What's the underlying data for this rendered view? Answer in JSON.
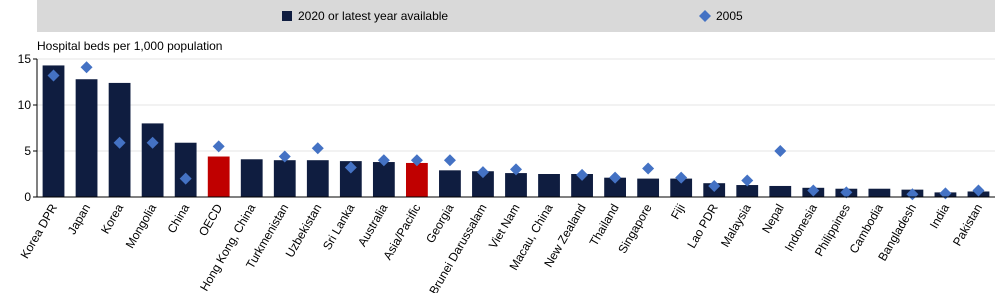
{
  "chart_data": {
    "type": "bar",
    "y_label": "Hospital beds per 1,000 population",
    "categories": [
      "Korea DPR",
      "Japan",
      "Korea",
      "Mongolia",
      "China",
      "OECD",
      "Hong Kong, China",
      "Turkmenistan",
      "Uzbekistan",
      "Sri Lanka",
      "Australia",
      "Asia/Pacific",
      "Georgia",
      "Brunei Darussalam",
      "Viet Nam",
      "Macau, China",
      "New Zealand",
      "Thailand",
      "Singapore",
      "Fiji",
      "Lao PDR",
      "Malaysia",
      "Nepal",
      "Indonesia",
      "Philippines",
      "Cambodia",
      "Bangladesh",
      "India",
      "Pakistan"
    ],
    "series": [
      {
        "name": "2020 or latest year available",
        "type": "bar",
        "color": "#0f1d40",
        "colors": [
          "#0f1d40",
          "#0f1d40",
          "#0f1d40",
          "#0f1d40",
          "#0f1d40",
          "#c00000",
          "#0f1d40",
          "#0f1d40",
          "#0f1d40",
          "#0f1d40",
          "#0f1d40",
          "#c00000",
          "#0f1d40",
          "#0f1d40",
          "#0f1d40",
          "#0f1d40",
          "#0f1d40",
          "#0f1d40",
          "#0f1d40",
          "#0f1d40",
          "#0f1d40",
          "#0f1d40",
          "#0f1d40",
          "#0f1d40",
          "#0f1d40",
          "#0f1d40",
          "#0f1d40",
          "#0f1d40",
          "#0f1d40"
        ],
        "values": [
          14.3,
          12.8,
          12.4,
          8.0,
          5.9,
          4.4,
          4.1,
          4.0,
          4.0,
          3.9,
          3.8,
          3.7,
          2.9,
          2.8,
          2.6,
          2.5,
          2.5,
          2.1,
          2.0,
          2.0,
          1.5,
          1.3,
          1.2,
          1.0,
          0.9,
          0.9,
          0.8,
          0.5,
          0.6
        ]
      },
      {
        "name": "2005",
        "type": "diamond",
        "color": "#4472c4",
        "values": [
          13.2,
          14.1,
          5.9,
          5.9,
          2.0,
          5.5,
          null,
          4.4,
          5.3,
          3.2,
          4.0,
          4.0,
          4.0,
          2.7,
          3.0,
          null,
          2.4,
          2.1,
          3.1,
          2.1,
          1.2,
          1.8,
          5.0,
          0.7,
          0.5,
          null,
          0.3,
          0.4,
          0.7
        ]
      }
    ],
    "ylim": [
      0,
      15
    ],
    "yticks": [
      0,
      5,
      10,
      15
    ],
    "grid": true
  }
}
